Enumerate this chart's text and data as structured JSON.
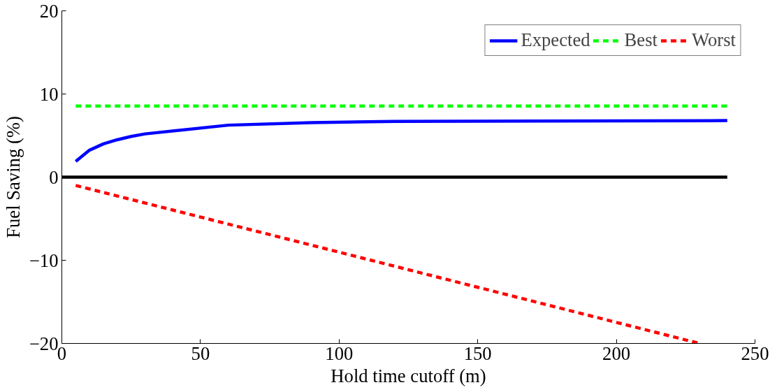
{
  "chart_data": {
    "type": "line",
    "xlabel": "Hold time cutoff (m)",
    "ylabel": "Fuel Saving (%)",
    "xlim": [
      0,
      250
    ],
    "xticks": [
      0,
      50,
      100,
      150,
      200,
      250
    ],
    "ylim": [
      -20,
      20
    ],
    "yticks": [
      {
        "value": -20,
        "label": "−20"
      },
      {
        "value": -10,
        "label": "−10"
      },
      0,
      10,
      20
    ],
    "grid": false,
    "legend": "top right",
    "series": [
      {
        "name": "Expected",
        "color": "#0000ff",
        "line_style": "solid",
        "x": [
          5,
          10,
          15,
          20,
          25,
          30,
          60,
          90,
          120,
          240
        ],
        "values": [
          1.9,
          3.25,
          4.0,
          4.5,
          4.9,
          5.2,
          6.25,
          6.55,
          6.7,
          6.8
        ]
      },
      {
        "name": "Best",
        "color": "#00ff00",
        "line_style": "dashed",
        "x": [
          5,
          240
        ],
        "values": [
          8.55,
          8.55
        ]
      },
      {
        "name": "Worst",
        "color": "#ff0000",
        "line_style": "dashed",
        "x": [
          5,
          230
        ],
        "values": [
          -1.0,
          -20
        ]
      },
      {
        "color": "#000000",
        "line_style": "solid",
        "x": [
          0,
          240
        ],
        "values": [
          0,
          0
        ]
      }
    ]
  }
}
